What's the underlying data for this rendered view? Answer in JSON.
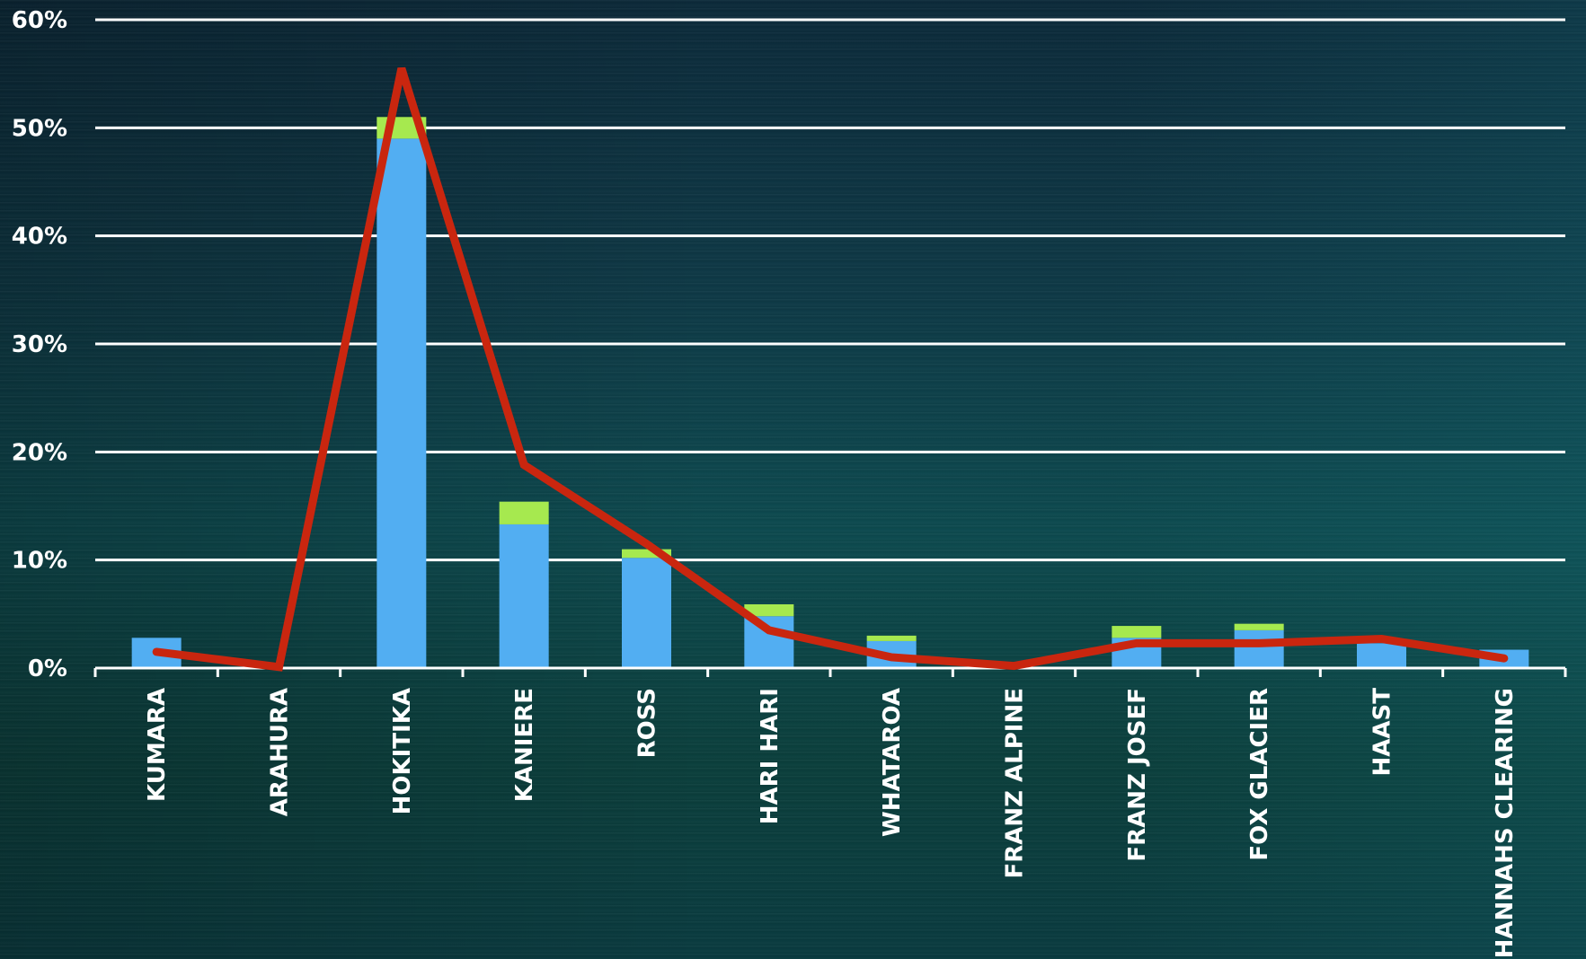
{
  "chart_data": {
    "type": "bar",
    "categories": [
      "KUMARA",
      "ARAHURA",
      "HOKITIKA",
      "KANIERE",
      "ROSS",
      "HARI HARI",
      "WHATAROA",
      "FRANZ ALPINE",
      "FRANZ JOSEF",
      "FOX GLACIER",
      "HAAST",
      "HANNAHS CLEARING"
    ],
    "series": [
      {
        "type": "bar",
        "color": "#52aef2",
        "values": [
          2.8,
          0,
          49.0,
          13.3,
          10.2,
          4.8,
          2.5,
          0,
          2.8,
          3.5,
          2.3,
          1.7
        ]
      },
      {
        "type": "bar",
        "color": "#a6e94f",
        "values": [
          0,
          0,
          2.0,
          2.1,
          0.8,
          1.1,
          0.5,
          0,
          1.1,
          0.6,
          0,
          0
        ]
      },
      {
        "type": "line",
        "color": "#c9260f",
        "values": [
          1.5,
          0.1,
          55.5,
          18.8,
          11.5,
          3.5,
          1.0,
          0.2,
          2.3,
          2.3,
          2.7,
          0.9
        ]
      }
    ],
    "stacked": true,
    "ylim": [
      0,
      60
    ],
    "yticks": [
      "0%",
      "10%",
      "20%",
      "30%",
      "40%",
      "50%",
      "60%"
    ],
    "grid": true,
    "title": "",
    "xlabel": "",
    "ylabel": ""
  }
}
